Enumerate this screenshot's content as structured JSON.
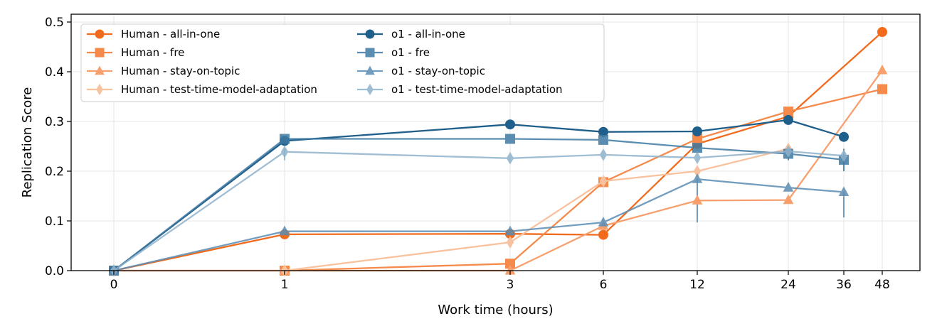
{
  "chart_data": {
    "type": "line",
    "title": "",
    "xlabel": "Work time (hours)",
    "ylabel": "Replication Score",
    "x_ticks": [
      "0",
      "1",
      "3",
      "6",
      "12",
      "24",
      "36",
      "48"
    ],
    "y_ticks": [
      "0.0",
      "0.1",
      "0.2",
      "0.3",
      "0.4",
      "0.5"
    ],
    "ylim": [
      0,
      0.5
    ],
    "grid": true,
    "legend_position": "top-left",
    "series": [
      {
        "name": "Human - all-in-one",
        "color": "#f26b1d",
        "marker": "circle",
        "opacity": 1.0,
        "x": [
          0,
          1,
          3,
          6,
          12,
          24,
          48
        ],
        "y": [
          0.0,
          0.073,
          0.074,
          0.072,
          0.255,
          0.31,
          0.48
        ]
      },
      {
        "name": "Human - fre",
        "color": "#f58a4b",
        "marker": "square",
        "opacity": 1.0,
        "x": [
          0,
          1,
          3,
          6,
          12,
          24,
          48
        ],
        "y": [
          0.0,
          0.0,
          0.014,
          0.178,
          0.265,
          0.32,
          0.365
        ]
      },
      {
        "name": "Human - stay-on-topic",
        "color": "#f7a06e",
        "marker": "triangle",
        "opacity": 1.0,
        "x": [
          0,
          1,
          3,
          6,
          12,
          24,
          48
        ],
        "y": [
          0.0,
          0.0,
          0.0,
          0.09,
          0.141,
          0.142,
          0.403
        ]
      },
      {
        "name": "Human - test-time-model-adaptation",
        "color": "#f9c29f",
        "marker": "diamond",
        "opacity": 1.0,
        "x": [
          0,
          1,
          3,
          6,
          12,
          24
        ],
        "y": [
          0.0,
          0.0,
          0.057,
          0.18,
          0.2,
          0.245
        ]
      },
      {
        "name": "o1  - all-in-one",
        "color": "#1f5f8b",
        "marker": "circle",
        "opacity": 1.0,
        "x": [
          0,
          1,
          3,
          6,
          12,
          24,
          36
        ],
        "y": [
          0.0,
          0.261,
          0.294,
          0.279,
          0.28,
          0.303,
          0.269
        ]
      },
      {
        "name": "o1  - fre",
        "color": "#3f7aa3",
        "marker": "square",
        "opacity": 0.85,
        "x": [
          0,
          1,
          3,
          6,
          12,
          24,
          36
        ],
        "y": [
          0.0,
          0.265,
          0.265,
          0.263,
          0.247,
          0.235,
          0.223
        ]
      },
      {
        "name": "o1  - stay-on-topic",
        "color": "#5b8db3",
        "marker": "triangle",
        "opacity": 0.85,
        "x": [
          0,
          1,
          3,
          6,
          12,
          24,
          36
        ],
        "y": [
          0.0,
          0.079,
          0.079,
          0.097,
          0.184,
          0.167,
          0.158
        ]
      },
      {
        "name": "o1  - test-time-model-adaptation",
        "color": "#8fb2cc",
        "marker": "diamond",
        "opacity": 0.85,
        "x": [
          0,
          1,
          3,
          6,
          12,
          24,
          36
        ],
        "y": [
          0.0,
          0.239,
          0.226,
          0.233,
          0.227,
          0.24,
          0.231
        ]
      }
    ],
    "error_bars": [
      {
        "series": "o1  - stay-on-topic",
        "x": 12,
        "low": 0.097,
        "high": 0.184
      },
      {
        "series": "o1  - stay-on-topic",
        "x": 36,
        "low": 0.107,
        "high": 0.158
      },
      {
        "series": "o1  - fre",
        "x": 36,
        "low": 0.2,
        "high": 0.245
      },
      {
        "series": "o1  - fre",
        "x": 24,
        "low": 0.222,
        "high": 0.247
      },
      {
        "series": "o1  - test-time-model-adaptation",
        "x": 1,
        "low": 0.222,
        "high": 0.245
      }
    ]
  }
}
